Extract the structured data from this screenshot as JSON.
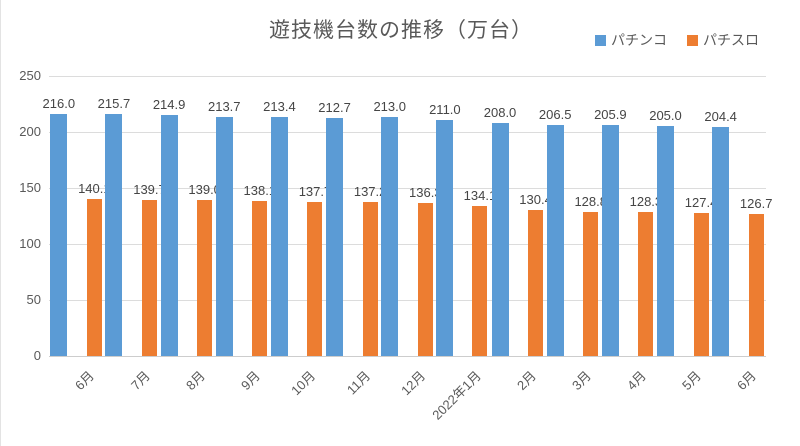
{
  "title": "遊技機台数の推移（万台）",
  "legend": {
    "items": [
      {
        "label": "パチンコ",
        "color": "#5B9BD5"
      },
      {
        "label": "パチスロ",
        "color": "#ED7D31"
      }
    ]
  },
  "colors": {
    "pachinko_blue": "#5B9BD5",
    "pachislot_orange": "#ED7D31",
    "gridline": "#dcdcdc",
    "axis_text": "#595959",
    "data_label_text": "#454545"
  },
  "chart_data": {
    "type": "bar",
    "title": "遊技機台数の推移（万台）",
    "categories": [
      "6月",
      "7月",
      "8月",
      "9月",
      "10月",
      "11月",
      "12月",
      "2022年1月",
      "2月",
      "3月",
      "4月",
      "5月",
      "6月"
    ],
    "series": [
      {
        "name": "パチンコ",
        "color": "#5B9BD5",
        "values": [
          216.0,
          215.7,
          214.9,
          213.7,
          213.4,
          212.7,
          213.0,
          211.0,
          208.0,
          206.5,
          205.9,
          205.0,
          204.4
        ]
      },
      {
        "name": "パチスロ",
        "color": "#ED7D31",
        "values": [
          140.1,
          139.7,
          139.0,
          138.1,
          137.7,
          137.2,
          136.3,
          134.1,
          130.4,
          128.8,
          128.3,
          127.4,
          126.7
        ]
      }
    ],
    "xlabel": "",
    "ylabel": "",
    "ylim": [
      0,
      250
    ],
    "yticks": [
      0,
      50,
      100,
      150,
      200,
      250
    ],
    "grid": true,
    "data_labels": true,
    "data_label_format": "one_decimal",
    "legend_position": "top-right",
    "x_label_rotation": -45
  }
}
